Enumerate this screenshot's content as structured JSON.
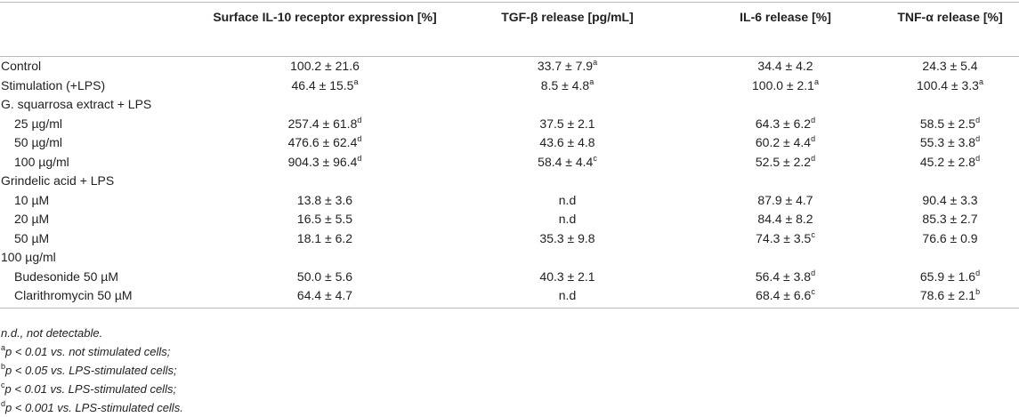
{
  "table": {
    "header": [
      "",
      "Surface IL-10 receptor expression [%]",
      "TGF-β release [pg/mL]",
      "IL-6 release [%]",
      "TNF-α release [%]"
    ],
    "rows": [
      {
        "label": "Control",
        "cells": [
          "100.2 ± 21.6",
          {
            "text": "33.7 ± 7.9",
            "sup": "a"
          },
          "34.4 ± 4.2",
          "24.3 ± 5.4"
        ]
      },
      {
        "label": "Stimulation (+LPS)",
        "cells": [
          {
            "text": "46.4 ± 15.5",
            "sup": "a"
          },
          {
            "text": "8.5 ± 4.8",
            "sup": "a"
          },
          {
            "text": "100.0 ± 2.1",
            "sup": "a"
          },
          {
            "text": "100.4 ± 3.3",
            "sup": "a"
          }
        ]
      },
      {
        "label": "G. squarrosa extract + LPS",
        "subrows": [
          {
            "label": "25 µg/ml",
            "cells": [
              {
                "text": "257.4 ± 61.8",
                "sup": "d"
              },
              "37.5 ± 2.1",
              {
                "text": "64.3 ± 6.2",
                "sup": "d"
              },
              {
                "text": "58.5 ± 2.5",
                "sup": "d"
              }
            ]
          },
          {
            "label": "50 µg/ml",
            "cells": [
              {
                "text": "476.6 ± 62.4",
                "sup": "d"
              },
              "43.6 ± 4.8",
              {
                "text": "60.2 ± 4.4",
                "sup": "d"
              },
              {
                "text": "55.3 ± 3.8",
                "sup": "d"
              }
            ]
          },
          {
            "label": "100 µg/ml",
            "cells": [
              {
                "text": "904.3 ± 96.4",
                "sup": "d"
              },
              {
                "text": "58.4 ± 4.4",
                "sup": "c"
              },
              {
                "text": "52.5 ± 2.2",
                "sup": "d"
              },
              {
                "text": "45.2 ± 2.8",
                "sup": "d"
              }
            ]
          }
        ]
      },
      {
        "label": "Grindelic acid + LPS",
        "subrows": [
          {
            "label": "10 µM",
            "cells": [
              "13.8 ± 3.6",
              "n.d",
              "87.9 ± 4.7",
              "90.4 ± 3.3"
            ]
          },
          {
            "label": "20 µM",
            "cells": [
              "16.5 ± 5.5",
              "n.d",
              "84.4 ± 8.2",
              "85.3 ± 2.7"
            ]
          },
          {
            "label": "50 µM",
            "cells": [
              "18.1 ± 6.2",
              "35.3 ± 9.8",
              {
                "text": "74.3 ± 3.5",
                "sup": "c"
              },
              "76.6 ± 0.9"
            ]
          }
        ]
      },
      {
        "label": "100 µg/ml",
        "subrows": [
          {
            "label": "Budesonide 50 µM",
            "cells": [
              "50.0 ± 5.6",
              "40.3 ± 2.1",
              {
                "text": "56.4 ± 3.8",
                "sup": "d"
              },
              {
                "text": "65.9 ± 1.6",
                "sup": "d"
              }
            ]
          },
          {
            "label": "Clarithromycin 50 µM",
            "cells": [
              "64.4 ± 4.7",
              "n.d",
              {
                "text": "68.4 ± 6.6",
                "sup": "c"
              },
              {
                "text": "78.6 ± 2.1",
                "sup": "b"
              }
            ]
          }
        ]
      }
    ],
    "footnotes": [
      {
        "text": "n.d., not detectable."
      },
      {
        "sup": "a",
        "text": "p < 0.01 vs. not stimulated cells;"
      },
      {
        "sup": "b",
        "text": "p < 0.05 vs. LPS-stimulated cells;"
      },
      {
        "sup": "c",
        "text": "p < 0.01 vs. LPS-stimulated cells;"
      },
      {
        "sup": "d",
        "text": "p < 0.001 vs. LPS-stimulated cells."
      }
    ]
  }
}
